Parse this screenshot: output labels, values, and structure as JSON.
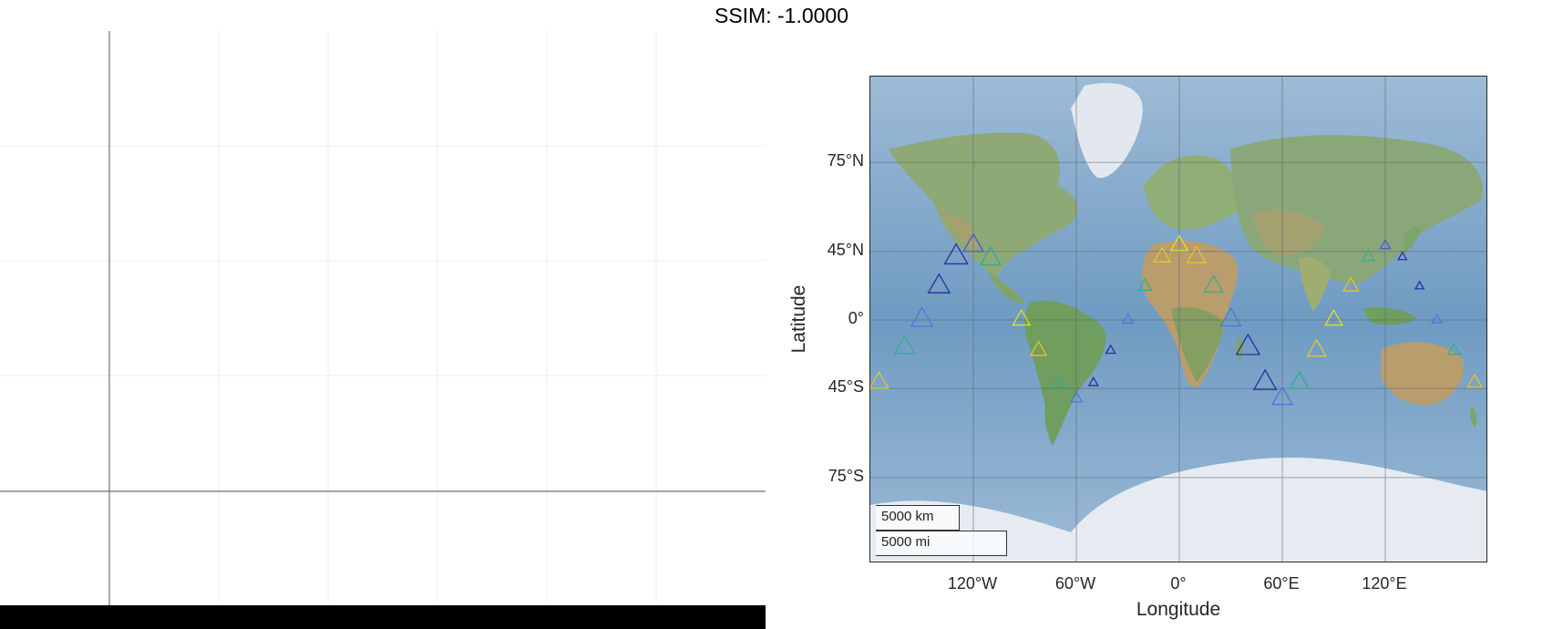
{
  "title": "SSIM: -1.0000",
  "map": {
    "xlabel": "Longitude",
    "ylabel": "Latitude",
    "xticks": [
      {
        "lon": -120,
        "label": "120°W"
      },
      {
        "lon": -60,
        "label": "60°W"
      },
      {
        "lon": 0,
        "label": "0°"
      },
      {
        "lon": 60,
        "label": "60°E"
      },
      {
        "lon": 120,
        "label": "120°E"
      }
    ],
    "yticks": [
      {
        "lat": 75,
        "label": "75°N"
      },
      {
        "lat": 45,
        "label": "45°N"
      },
      {
        "lat": 0,
        "label": "0°"
      },
      {
        "lat": -45,
        "label": "45°S"
      },
      {
        "lat": -75,
        "label": "75°S"
      }
    ],
    "lon_range": [
      -180,
      180
    ],
    "lat_range": [
      -85,
      85
    ],
    "scalebar": {
      "km_label": "5000 km",
      "mi_label": "5000 mi"
    },
    "colors": {
      "ocean": "#7fa6c9",
      "land": "#8aa779",
      "ice": "#e8ecf2",
      "grid": "#555555"
    },
    "markers": [
      {
        "lon": -120,
        "lat": 48,
        "size": 2,
        "color": "#4a5bd8"
      },
      {
        "lon": -130,
        "lat": 42,
        "size": 2.4,
        "color": "#2a2f9e"
      },
      {
        "lon": -110,
        "lat": 41,
        "size": 2,
        "color": "#2fa89a"
      },
      {
        "lon": -140,
        "lat": 24,
        "size": 2.2,
        "color": "#2a2f9e"
      },
      {
        "lon": -150,
        "lat": 0,
        "size": 2.2,
        "color": "#4a79e0"
      },
      {
        "lon": -160,
        "lat": -20,
        "size": 2,
        "color": "#2fb08a"
      },
      {
        "lon": -175,
        "lat": -42,
        "size": 1.8,
        "color": "#e8c42a"
      },
      {
        "lon": -92,
        "lat": 0,
        "size": 1.6,
        "color": "#e0e020"
      },
      {
        "lon": -82,
        "lat": -22,
        "size": 1.4,
        "color": "#e8c42a"
      },
      {
        "lon": -70,
        "lat": -42,
        "size": 1.2,
        "color": "#2fb08a"
      },
      {
        "lon": -60,
        "lat": -50,
        "size": 0.8,
        "color": "#4a79e0"
      },
      {
        "lon": -50,
        "lat": -42,
        "size": 0.5,
        "color": "#2a2f9e"
      },
      {
        "lon": -40,
        "lat": -22,
        "size": 0.5,
        "color": "#2a2f9e"
      },
      {
        "lon": -30,
        "lat": 0,
        "size": 0.7,
        "color": "#4a79e0"
      },
      {
        "lon": -20,
        "lat": 24,
        "size": 1,
        "color": "#2fb08a"
      },
      {
        "lon": -10,
        "lat": 42,
        "size": 1.5,
        "color": "#e8c42a"
      },
      {
        "lon": 0,
        "lat": 48,
        "size": 1.6,
        "color": "#e0e020"
      },
      {
        "lon": 10,
        "lat": 42,
        "size": 1.8,
        "color": "#e8c42a"
      },
      {
        "lon": 20,
        "lat": 24,
        "size": 1.8,
        "color": "#2fb08a"
      },
      {
        "lon": 30,
        "lat": 0,
        "size": 2,
        "color": "#4a79e0"
      },
      {
        "lon": 40,
        "lat": -20,
        "size": 2.4,
        "color": "#2a2f9e"
      },
      {
        "lon": 50,
        "lat": -42,
        "size": 2.3,
        "color": "#2a2f9e"
      },
      {
        "lon": 60,
        "lat": -50,
        "size": 2,
        "color": "#4a79e0"
      },
      {
        "lon": 70,
        "lat": -42,
        "size": 1.8,
        "color": "#2fb08a"
      },
      {
        "lon": 80,
        "lat": -22,
        "size": 1.8,
        "color": "#e8c42a"
      },
      {
        "lon": 90,
        "lat": 0,
        "size": 1.6,
        "color": "#e0e020"
      },
      {
        "lon": 100,
        "lat": 24,
        "size": 1.3,
        "color": "#e8c42a"
      },
      {
        "lon": 110,
        "lat": 42,
        "size": 0.9,
        "color": "#2fb08a"
      },
      {
        "lon": 120,
        "lat": 48,
        "size": 0.6,
        "color": "#4a5bd8"
      },
      {
        "lon": 130,
        "lat": 42,
        "size": 0.4,
        "color": "#2a2f9e"
      },
      {
        "lon": 140,
        "lat": 24,
        "size": 0.4,
        "color": "#2a2f9e"
      },
      {
        "lon": 150,
        "lat": 0,
        "size": 0.6,
        "color": "#4a79e0"
      },
      {
        "lon": 160,
        "lat": -22,
        "size": 0.9,
        "color": "#2fb08a"
      },
      {
        "lon": 172,
        "lat": -42,
        "size": 1.2,
        "color": "#e8c42a"
      }
    ]
  }
}
